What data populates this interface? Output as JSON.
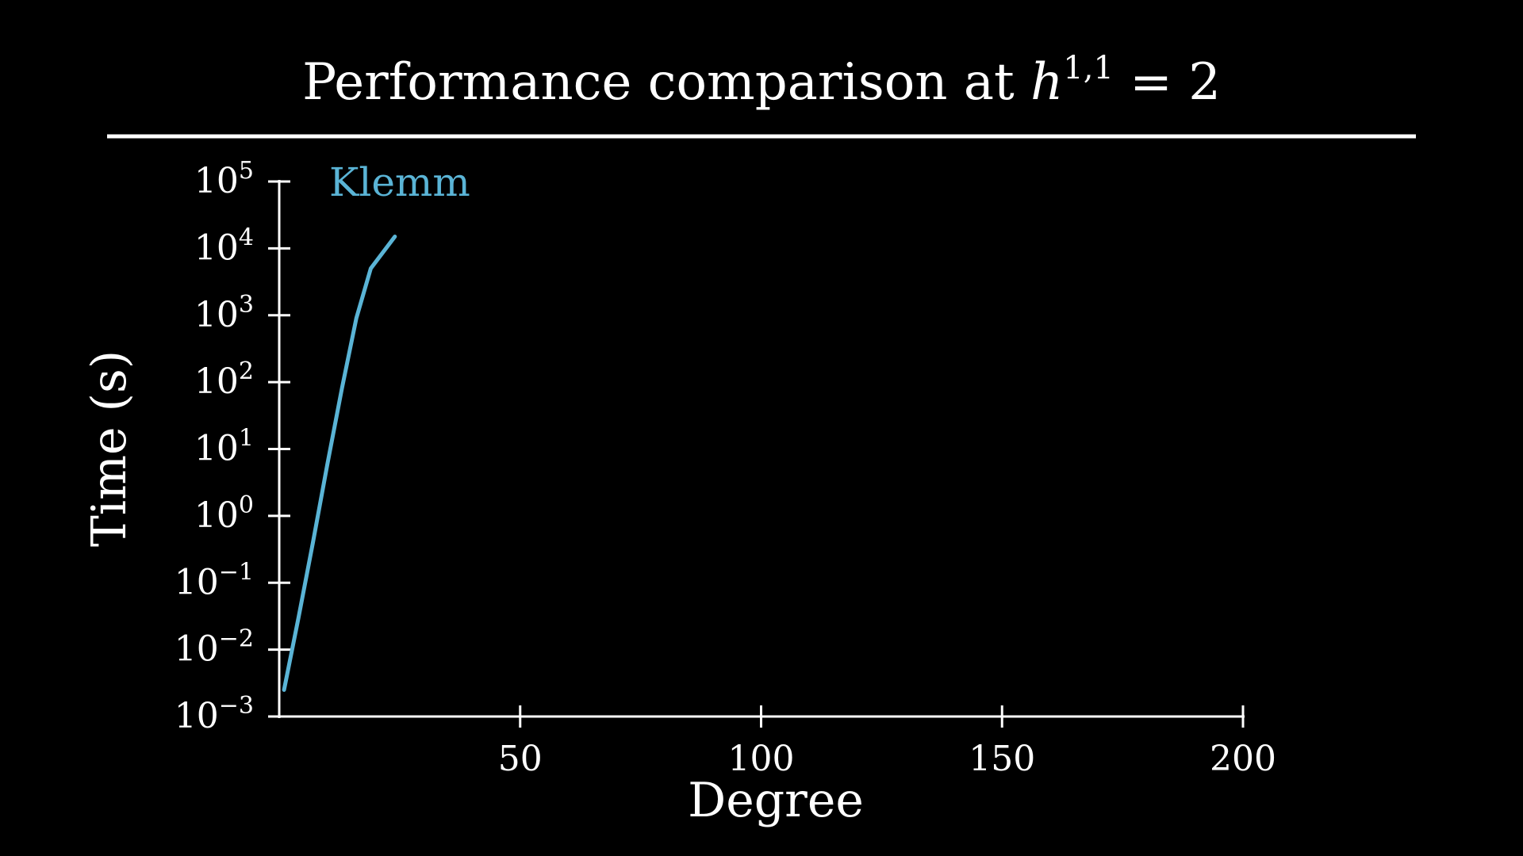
{
  "colors": {
    "background": "#000000",
    "foreground": "#ffffff",
    "series": "#5ab4d6"
  },
  "chart_data": {
    "type": "line",
    "title": {
      "prefix": "Performance comparison at ",
      "var": "h",
      "sup": "1,1",
      "suffix": " = 2"
    },
    "xlabel": "Degree",
    "ylabel": "Time (s)",
    "xlim": [
      0,
      200
    ],
    "x_ticks": [
      50,
      100,
      150,
      200
    ],
    "y_scale": "log",
    "ylim": [
      0.001,
      100000
    ],
    "y_ticks": [
      {
        "value": 0.001,
        "base": "10",
        "exp": "−3"
      },
      {
        "value": 0.01,
        "base": "10",
        "exp": "−2"
      },
      {
        "value": 0.1,
        "base": "10",
        "exp": "−1"
      },
      {
        "value": 1,
        "base": "10",
        "exp": "0"
      },
      {
        "value": 10,
        "base": "10",
        "exp": "1"
      },
      {
        "value": 100,
        "base": "10",
        "exp": "2"
      },
      {
        "value": 1000,
        "base": "10",
        "exp": "3"
      },
      {
        "value": 10000,
        "base": "10",
        "exp": "4"
      },
      {
        "value": 100000,
        "base": "10",
        "exp": "5"
      }
    ],
    "series": [
      {
        "name": "Klemm",
        "color": "#5ab4d6",
        "points": [
          {
            "x": 1,
            "y": 0.0025
          },
          {
            "x": 4,
            "y": 0.03
          },
          {
            "x": 7,
            "y": 0.4
          },
          {
            "x": 10,
            "y": 6
          },
          {
            "x": 13,
            "y": 80
          },
          {
            "x": 16,
            "y": 900
          },
          {
            "x": 19,
            "y": 5000
          },
          {
            "x": 24,
            "y": 15000
          }
        ]
      }
    ]
  }
}
